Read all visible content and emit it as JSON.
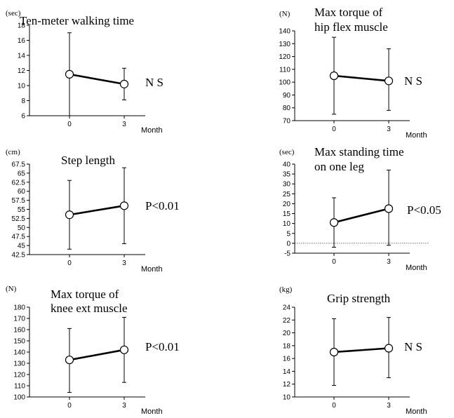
{
  "chart_data": [
    {
      "type": "line",
      "title": [
        "Ten-meter walking time"
      ],
      "unit": "(sec)",
      "xlabel": "Month",
      "x": [
        0,
        3
      ],
      "ylim": [
        6,
        18
      ],
      "yticks": [
        6,
        8,
        10,
        12,
        14,
        16,
        18
      ],
      "values": [
        11.5,
        10.2
      ],
      "err_low": [
        6.0,
        8.1
      ],
      "err_high": [
        17.0,
        12.3
      ],
      "significance": "N S"
    },
    {
      "type": "line",
      "title": [
        "Max torque of",
        "hip flex muscle"
      ],
      "unit": "(N)",
      "xlabel": "Month",
      "x": [
        0,
        3
      ],
      "ylim": [
        70,
        140
      ],
      "yticks": [
        70,
        80,
        90,
        100,
        110,
        120,
        130,
        140
      ],
      "values": [
        105,
        101
      ],
      "err_low": [
        75,
        78
      ],
      "err_high": [
        135,
        126
      ],
      "significance": "N S"
    },
    {
      "type": "line",
      "title": [
        "Step length"
      ],
      "unit": "(cm)",
      "xlabel": "Month",
      "x": [
        0,
        3
      ],
      "ylim": [
        42.5,
        67.5
      ],
      "yticks": [
        "42.5",
        "45",
        "47.5",
        "50",
        "52.5",
        "55",
        "57.5",
        "60",
        "62.5",
        "65",
        "67.5"
      ],
      "values": [
        53.5,
        56.0
      ],
      "err_low": [
        44.0,
        45.5
      ],
      "err_high": [
        63.0,
        66.5
      ],
      "significance": "P<0.01"
    },
    {
      "type": "line",
      "title": [
        "Max standing time",
        "on one leg"
      ],
      "unit": "(sec)",
      "xlabel": "Month",
      "x": [
        0,
        3
      ],
      "ylim": [
        -5,
        40
      ],
      "yticks": [
        -5,
        0,
        5,
        10,
        15,
        20,
        25,
        30,
        35,
        40
      ],
      "values": [
        10.5,
        17.5
      ],
      "err_low": [
        -2.0,
        -1.0
      ],
      "err_high": [
        23.0,
        37.0
      ],
      "zero_line": true,
      "significance": "P<0.05"
    },
    {
      "type": "line",
      "title": [
        "Max torque of",
        "knee ext muscle"
      ],
      "unit": "(N)",
      "xlabel": "Month",
      "x": [
        0,
        3
      ],
      "ylim": [
        100,
        180
      ],
      "yticks": [
        100,
        110,
        120,
        130,
        140,
        150,
        160,
        170,
        180
      ],
      "values": [
        133,
        142
      ],
      "err_low": [
        104,
        113
      ],
      "err_high": [
        161,
        171
      ],
      "significance": "P<0.01"
    },
    {
      "type": "line",
      "title": [
        "Grip strength"
      ],
      "unit": "(kg)",
      "xlabel": "Month",
      "x": [
        0,
        3
      ],
      "ylim": [
        10,
        24
      ],
      "yticks": [
        10,
        12,
        14,
        16,
        18,
        20,
        22,
        24
      ],
      "values": [
        17.0,
        17.6
      ],
      "err_low": [
        11.8,
        13.0
      ],
      "err_high": [
        22.2,
        22.4
      ],
      "significance": "N S"
    }
  ]
}
